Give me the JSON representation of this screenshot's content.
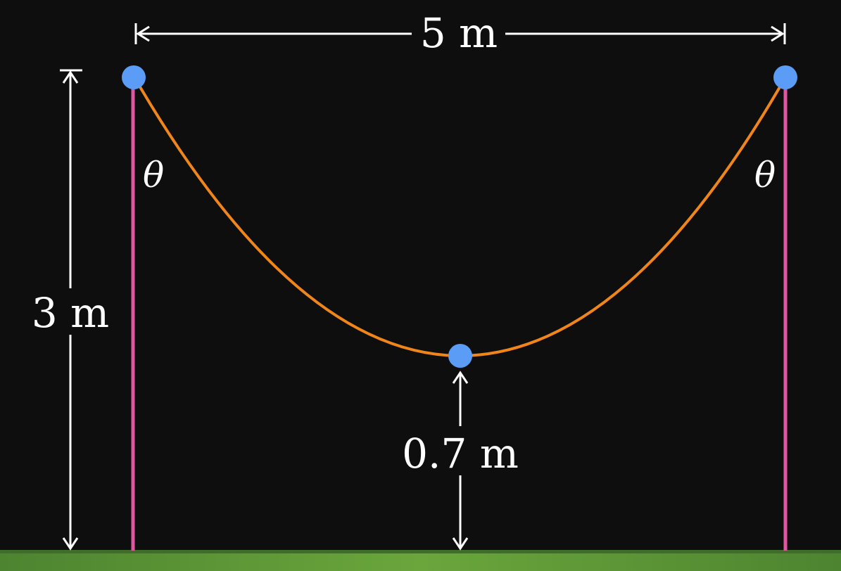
{
  "labels": {
    "span": "5 m",
    "post_height": "3 m",
    "sag_clearance": "0.7 m",
    "left_angle": "θ",
    "right_angle": "θ"
  },
  "colors": {
    "background": "#0e0e0f",
    "posts": "#e0569f",
    "cable": "#f0851a",
    "points": "#5b9cf6",
    "dimension_lines": "#ffffff",
    "ground_light": "#6aa63c",
    "ground_dark": "#3f6e2a"
  }
}
